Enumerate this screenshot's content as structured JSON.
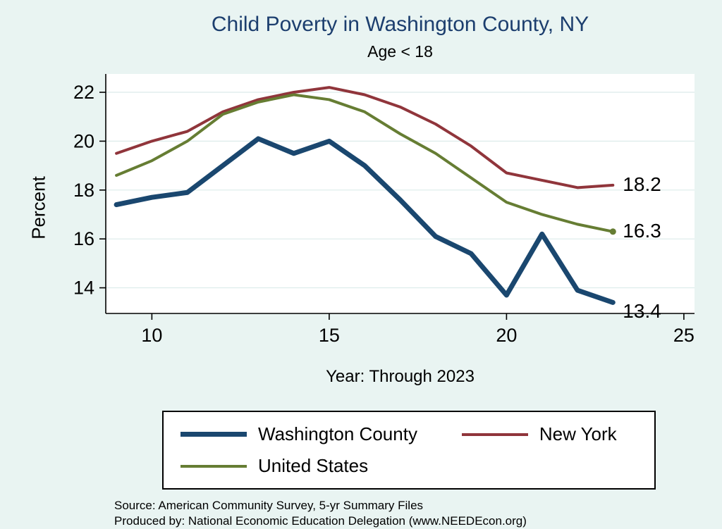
{
  "page": {
    "background_color": "#e9f4f2",
    "title": "Child Poverty in Washington County, NY",
    "subtitle": "Age < 18",
    "title_color": "#1c3e6e"
  },
  "chart_data": {
    "type": "line",
    "title": "Child Poverty in Washington County, NY",
    "subtitle": "Age < 18",
    "xlabel": "Year: Through 2023",
    "ylabel": "Percent",
    "x": [
      9,
      10,
      11,
      12,
      13,
      14,
      15,
      16,
      17,
      18,
      19,
      20,
      21,
      22,
      23
    ],
    "series": [
      {
        "name": "Washington County",
        "color": "#1a476f",
        "width": 7,
        "values": [
          17.4,
          17.7,
          17.9,
          19.0,
          20.1,
          19.5,
          20.0,
          19.0,
          17.6,
          16.1,
          15.4,
          13.7,
          16.2,
          13.9,
          13.4
        ],
        "end_label": "13.4",
        "label_dy": 14,
        "marker_end": false
      },
      {
        "name": "New York",
        "color": "#90353b",
        "width": 4,
        "values": [
          19.5,
          20.0,
          20.4,
          21.2,
          21.7,
          22.0,
          22.2,
          21.9,
          21.4,
          20.7,
          19.8,
          18.7,
          18.4,
          18.1,
          18.2
        ],
        "end_label": "18.2",
        "label_dy": 0,
        "marker_end": false
      },
      {
        "name": "United States",
        "color": "#667d33",
        "width": 4,
        "values": [
          18.6,
          19.2,
          20.0,
          21.1,
          21.6,
          21.9,
          21.7,
          21.2,
          20.3,
          19.5,
          18.5,
          17.5,
          17.0,
          16.6,
          16.3
        ],
        "end_label": "16.3",
        "label_dy": 0,
        "marker_end": true
      }
    ],
    "x_ticks": [
      10,
      15,
      20,
      25
    ],
    "y_ticks": [
      14,
      16,
      18,
      20,
      22
    ],
    "xlim": [
      8.7,
      25.3
    ],
    "ylim": [
      12.95,
      22.75
    ],
    "grid": true,
    "grid_color": "#dcebea",
    "legend_position": "bottom"
  },
  "footer": {
    "source_line1": "Source: American Community Survey, 5-yr Summary Files",
    "source_line2": "Produced by: National Economic Education Delegation (www.NEEDEcon.org)"
  }
}
